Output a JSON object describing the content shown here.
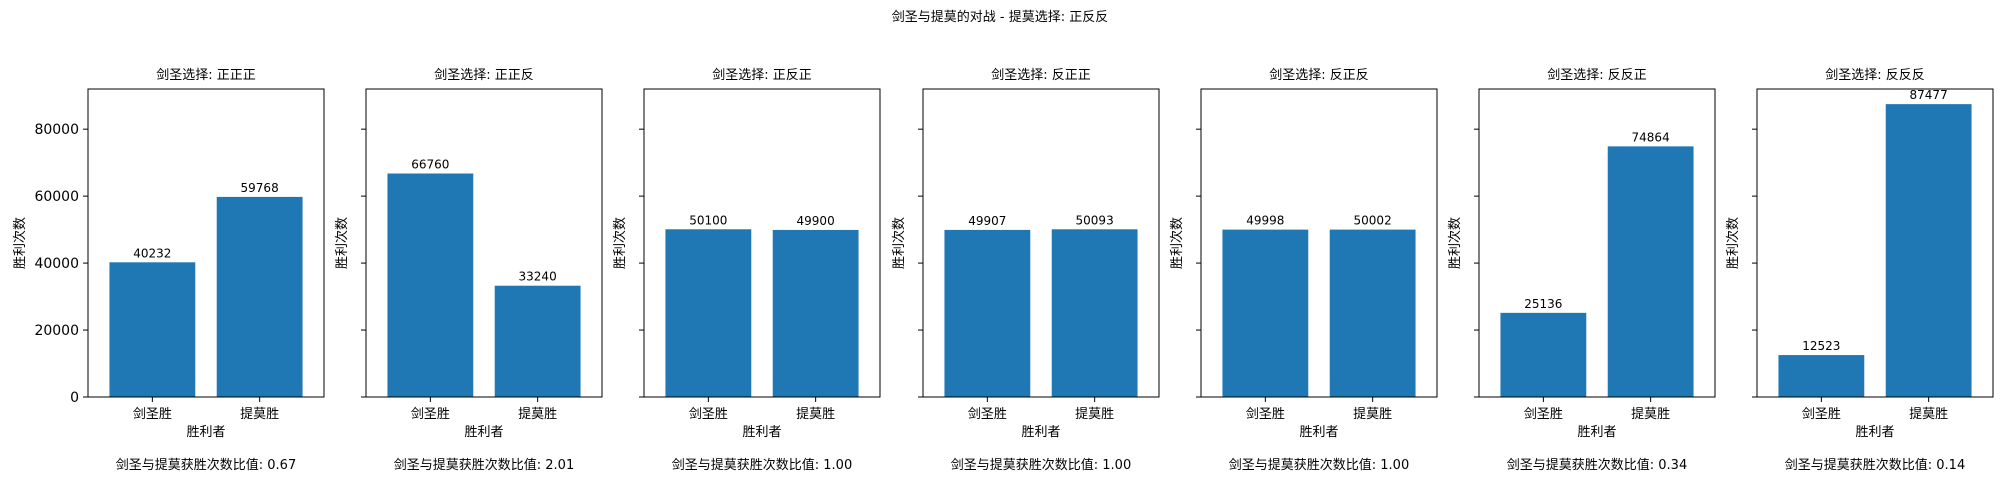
{
  "figure": {
    "suptitle": "剑圣与提莫的对战 - 提莫选择: 正反反"
  },
  "chart_data": [
    {
      "type": "bar",
      "title": "剑圣选择: 正正正",
      "categories": [
        "剑圣胜",
        "提莫胜"
      ],
      "values": [
        40232,
        59768
      ],
      "xlabel": "胜利者",
      "ylabel": "胜利次数",
      "ylim": [
        0,
        92000
      ],
      "yticks": [
        0,
        20000,
        40000,
        60000,
        80000
      ],
      "footnote": "剑圣与提莫获胜次数比值: 0.67",
      "bar_color": "#1f77b4",
      "grid": false
    },
    {
      "type": "bar",
      "title": "剑圣选择: 正正反",
      "categories": [
        "剑圣胜",
        "提莫胜"
      ],
      "values": [
        66760,
        33240
      ],
      "xlabel": "胜利者",
      "ylabel": "胜利次数",
      "ylim": [
        0,
        92000
      ],
      "yticks": [
        0,
        20000,
        40000,
        60000,
        80000
      ],
      "footnote": "剑圣与提莫获胜次数比值: 2.01",
      "bar_color": "#1f77b4",
      "grid": false
    },
    {
      "type": "bar",
      "title": "剑圣选择: 正反正",
      "categories": [
        "剑圣胜",
        "提莫胜"
      ],
      "values": [
        50100,
        49900
      ],
      "xlabel": "胜利者",
      "ylabel": "胜利次数",
      "ylim": [
        0,
        92000
      ],
      "yticks": [
        0,
        20000,
        40000,
        60000,
        80000
      ],
      "footnote": "剑圣与提莫获胜次数比值: 1.00",
      "bar_color": "#1f77b4",
      "grid": false
    },
    {
      "type": "bar",
      "title": "剑圣选择: 反正正",
      "categories": [
        "剑圣胜",
        "提莫胜"
      ],
      "values": [
        49907,
        50093
      ],
      "xlabel": "胜利者",
      "ylabel": "胜利次数",
      "ylim": [
        0,
        92000
      ],
      "yticks": [
        0,
        20000,
        40000,
        60000,
        80000
      ],
      "footnote": "剑圣与提莫获胜次数比值: 1.00",
      "bar_color": "#1f77b4",
      "grid": false
    },
    {
      "type": "bar",
      "title": "剑圣选择: 反正反",
      "categories": [
        "剑圣胜",
        "提莫胜"
      ],
      "values": [
        49998,
        50002
      ],
      "xlabel": "胜利者",
      "ylabel": "胜利次数",
      "ylim": [
        0,
        92000
      ],
      "yticks": [
        0,
        20000,
        40000,
        60000,
        80000
      ],
      "footnote": "剑圣与提莫获胜次数比值: 1.00",
      "bar_color": "#1f77b4",
      "grid": false
    },
    {
      "type": "bar",
      "title": "剑圣选择: 反反正",
      "categories": [
        "剑圣胜",
        "提莫胜"
      ],
      "values": [
        25136,
        74864
      ],
      "xlabel": "胜利者",
      "ylabel": "胜利次数",
      "ylim": [
        0,
        92000
      ],
      "yticks": [
        0,
        20000,
        40000,
        60000,
        80000
      ],
      "footnote": "剑圣与提莫获胜次数比值: 0.34",
      "bar_color": "#1f77b4",
      "grid": false
    },
    {
      "type": "bar",
      "title": "剑圣选择: 反反反",
      "categories": [
        "剑圣胜",
        "提莫胜"
      ],
      "values": [
        12523,
        87477
      ],
      "xlabel": "胜利者",
      "ylabel": "胜利次数",
      "ylim": [
        0,
        92000
      ],
      "yticks": [
        0,
        20000,
        40000,
        60000,
        80000
      ],
      "footnote": "剑圣与提莫获胜次数比值: 0.14",
      "bar_color": "#1f77b4",
      "grid": false
    }
  ]
}
